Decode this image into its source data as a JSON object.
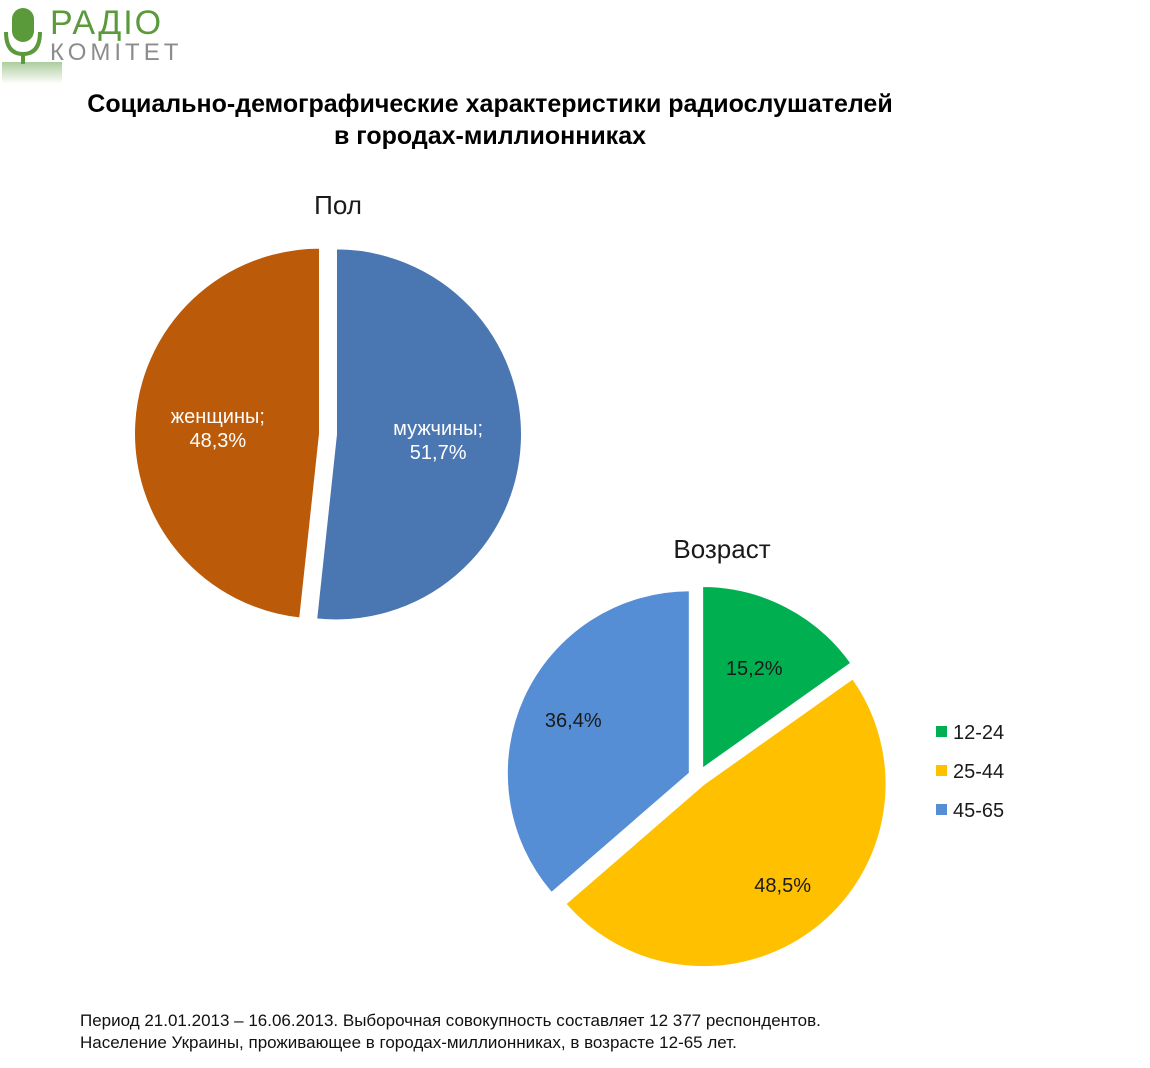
{
  "logo": {
    "text_top": "РАДІО",
    "text_bottom": "КОМІТЕТ",
    "colors": {
      "green": "#5a9a3a",
      "grey": "#8c8c8c"
    }
  },
  "title": {
    "line1": "Социально-демографические характеристики радиослушателей",
    "line2": "в городах-миллионниках"
  },
  "chart_data": [
    {
      "type": "pie",
      "title": "Пол",
      "labels": [
        "мужчины",
        "женщины"
      ],
      "values": [
        51.7,
        48.3
      ],
      "value_labels": [
        "мужчины;",
        "51,7%",
        "женщины;",
        "48,3%"
      ],
      "colors": [
        "#4a76b2",
        "#bb5a08"
      ],
      "label_color": "#ffffff",
      "exploded": true,
      "legend": "none"
    },
    {
      "type": "pie",
      "title": "Возраст",
      "labels": [
        "12-24",
        "25-44",
        "45-65"
      ],
      "values": [
        15.2,
        48.5,
        36.4
      ],
      "value_labels": [
        "15,2%",
        "48,5%",
        "36,4%"
      ],
      "colors": [
        "#00b050",
        "#ffc000",
        "#558ed5"
      ],
      "label_color": "#1a1a1a",
      "exploded": true,
      "legend": "right"
    }
  ],
  "footnote": {
    "line1": "Период 21.01.2013 – 16.06.2013. Выборочная совокупность составляет 12 377 респондентов.",
    "line2": "Население Украины, проживающее  в городах-миллионниках, в возрасте 12-65 лет."
  }
}
